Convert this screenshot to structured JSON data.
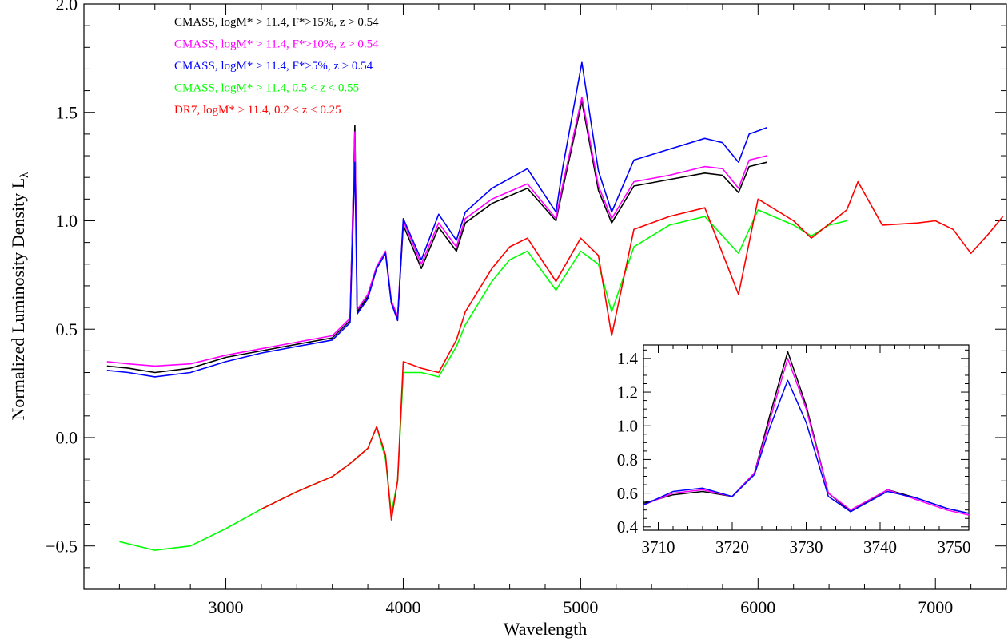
{
  "chart_data": {
    "main": {
      "type": "line",
      "xlabel": "Wavelength",
      "ylabel": "Normalized Luminosity Density L",
      "ylabel_subscript": "λ",
      "xlim": [
        2200,
        7400
      ],
      "ylim": [
        -0.7,
        2.0
      ],
      "xticks": [
        3000,
        4000,
        5000,
        6000,
        7000
      ],
      "xtick_labels": [
        "3000",
        "4000",
        "5000",
        "6000",
        "7000"
      ],
      "yticks": [
        -0.5,
        0.0,
        0.5,
        1.0,
        1.5,
        2.0
      ],
      "ytick_labels": [
        "−0.5",
        "0.0",
        "0.5",
        "1.0",
        "1.5",
        "2.0"
      ],
      "grid": false,
      "legend_position": "top-left",
      "series": [
        {
          "name": "CMASS, logM* > 11.4, F*>15%, z > 0.54",
          "color": "#000000",
          "x": [
            2330,
            2450,
            2600,
            2800,
            3000,
            3200,
            3400,
            3600,
            3700,
            3727,
            3740,
            3800,
            3850,
            3900,
            3933,
            3968,
            4000,
            4102,
            4200,
            4300,
            4350,
            4500,
            4700,
            4861,
            4900,
            5007,
            5100,
            5175,
            5300,
            5500,
            5700,
            5800,
            5890,
            5950,
            6050
          ],
          "y": [
            0.33,
            0.32,
            0.3,
            0.32,
            0.37,
            0.4,
            0.43,
            0.46,
            0.54,
            1.44,
            0.58,
            0.65,
            0.78,
            0.85,
            0.62,
            0.55,
            0.98,
            0.78,
            0.97,
            0.86,
            0.99,
            1.08,
            1.15,
            1.0,
            1.15,
            1.55,
            1.14,
            0.99,
            1.16,
            1.19,
            1.22,
            1.21,
            1.13,
            1.25,
            1.27
          ]
        },
        {
          "name": "CMASS, logM* > 11.4, F*>10%, z > 0.54",
          "color": "#ff00ff",
          "x": [
            2330,
            2450,
            2600,
            2800,
            3000,
            3200,
            3400,
            3600,
            3700,
            3727,
            3740,
            3800,
            3850,
            3900,
            3933,
            3968,
            4000,
            4102,
            4200,
            4300,
            4350,
            4500,
            4700,
            4861,
            4900,
            5007,
            5100,
            5175,
            5300,
            5500,
            5700,
            5800,
            5890,
            5950,
            6050
          ],
          "y": [
            0.35,
            0.34,
            0.33,
            0.34,
            0.38,
            0.41,
            0.44,
            0.47,
            0.55,
            1.41,
            0.59,
            0.66,
            0.79,
            0.86,
            0.63,
            0.56,
            1.0,
            0.8,
            0.99,
            0.88,
            1.01,
            1.1,
            1.17,
            1.01,
            1.17,
            1.57,
            1.16,
            1.01,
            1.18,
            1.21,
            1.25,
            1.24,
            1.15,
            1.28,
            1.3
          ]
        },
        {
          "name": "CMASS, logM* > 11.4, F*>5%, z > 0.54",
          "color": "#0000ff",
          "x": [
            2330,
            2450,
            2600,
            2800,
            3000,
            3200,
            3400,
            3600,
            3700,
            3727,
            3740,
            3800,
            3850,
            3900,
            3933,
            3968,
            4000,
            4102,
            4200,
            4300,
            4350,
            4500,
            4700,
            4861,
            4900,
            5007,
            5100,
            5175,
            5300,
            5500,
            5700,
            5800,
            5890,
            5950,
            6050
          ],
          "y": [
            0.31,
            0.3,
            0.28,
            0.3,
            0.35,
            0.39,
            0.42,
            0.45,
            0.53,
            1.27,
            0.57,
            0.64,
            0.78,
            0.85,
            0.62,
            0.54,
            1.01,
            0.82,
            1.03,
            0.91,
            1.04,
            1.15,
            1.24,
            1.04,
            1.25,
            1.73,
            1.23,
            1.04,
            1.28,
            1.33,
            1.38,
            1.36,
            1.27,
            1.4,
            1.43
          ]
        },
        {
          "name": "CMASS, logM* > 11.4, 0.5 < z < 0.55",
          "color": "#00ff00",
          "x": [
            2400,
            2600,
            2800,
            3000,
            3200,
            3400,
            3600,
            3700,
            3800,
            3850,
            3900,
            3933,
            3968,
            4000,
            4102,
            4200,
            4300,
            4350,
            4500,
            4600,
            4700,
            4861,
            5000,
            5100,
            5175,
            5300,
            5500,
            5700,
            5890,
            6000,
            6200,
            6300,
            6400,
            6500
          ],
          "y": [
            -0.48,
            -0.52,
            -0.5,
            -0.42,
            -0.33,
            -0.25,
            -0.18,
            -0.12,
            -0.05,
            0.05,
            -0.1,
            -0.35,
            -0.2,
            0.3,
            0.3,
            0.28,
            0.42,
            0.52,
            0.72,
            0.82,
            0.86,
            0.68,
            0.86,
            0.8,
            0.58,
            0.88,
            0.98,
            1.02,
            0.85,
            1.05,
            0.98,
            0.93,
            0.98,
            1.0
          ]
        },
        {
          "name": "DR7, logM* > 11.4, 0.2 < z < 0.25",
          "color": "#ff0000",
          "x": [
            3200,
            3400,
            3600,
            3700,
            3800,
            3850,
            3900,
            3933,
            3968,
            4000,
            4102,
            4200,
            4300,
            4350,
            4500,
            4600,
            4700,
            4861,
            5000,
            5100,
            5175,
            5300,
            5500,
            5700,
            5890,
            6000,
            6200,
            6300,
            6500,
            6563,
            6700,
            6900,
            7000,
            7100,
            7200,
            7300,
            7380
          ],
          "y": [
            -0.33,
            -0.25,
            -0.18,
            -0.12,
            -0.05,
            0.05,
            -0.08,
            -0.38,
            -0.2,
            0.35,
            0.32,
            0.3,
            0.45,
            0.58,
            0.78,
            0.88,
            0.92,
            0.72,
            0.92,
            0.84,
            0.47,
            0.96,
            1.02,
            1.06,
            0.66,
            1.1,
            1.0,
            0.92,
            1.05,
            1.18,
            0.98,
            0.99,
            1.0,
            0.96,
            0.85,
            0.94,
            1.02
          ]
        }
      ]
    },
    "inset": {
      "type": "line",
      "xlim": [
        3708,
        3752
      ],
      "ylim": [
        0.38,
        1.48
      ],
      "xticks": [
        3710,
        3720,
        3730,
        3740,
        3750
      ],
      "xtick_labels": [
        "3710",
        "3720",
        "3730",
        "3740",
        "3750"
      ],
      "yticks": [
        0.4,
        0.6,
        0.8,
        1.0,
        1.2,
        1.4
      ],
      "ytick_labels": [
        "0.4",
        "0.6",
        "0.8",
        "1.0",
        "1.2",
        "1.4"
      ],
      "series": [
        {
          "color": "#000000",
          "x": [
            3708,
            3712,
            3716,
            3720,
            3723,
            3725,
            3727.5,
            3730,
            3733,
            3736,
            3741,
            3745,
            3749,
            3752
          ],
          "y": [
            0.54,
            0.59,
            0.61,
            0.58,
            0.72,
            1.05,
            1.44,
            1.12,
            0.6,
            0.49,
            0.62,
            0.57,
            0.51,
            0.48
          ]
        },
        {
          "color": "#ff00ff",
          "x": [
            3708,
            3712,
            3716,
            3720,
            3723,
            3725,
            3727.5,
            3730,
            3733,
            3736,
            3741,
            3745,
            3749,
            3752
          ],
          "y": [
            0.53,
            0.6,
            0.62,
            0.58,
            0.72,
            1.02,
            1.4,
            1.1,
            0.6,
            0.5,
            0.62,
            0.56,
            0.5,
            0.47
          ]
        },
        {
          "color": "#0000ff",
          "x": [
            3708,
            3712,
            3716,
            3720,
            3723,
            3725,
            3727.5,
            3730,
            3733,
            3736,
            3741,
            3745,
            3749,
            3752
          ],
          "y": [
            0.53,
            0.61,
            0.63,
            0.58,
            0.71,
            0.98,
            1.27,
            1.02,
            0.58,
            0.49,
            0.61,
            0.57,
            0.51,
            0.48
          ]
        }
      ]
    }
  }
}
